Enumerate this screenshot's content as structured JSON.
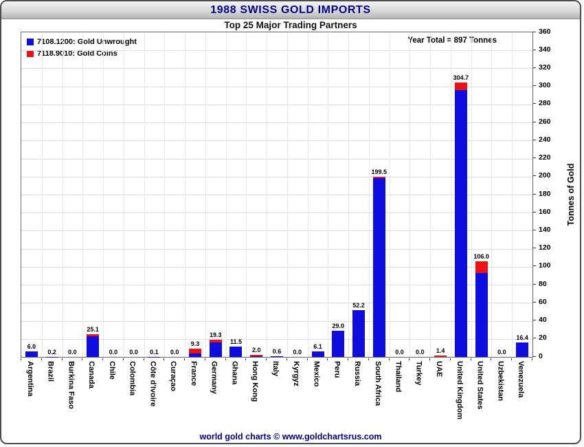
{
  "header": {
    "title": "1988 SWISS GOLD IMPORTS",
    "subtitle": "Top 25 Major Trading Partners"
  },
  "legend": [
    {
      "label": "7108.1200: Gold Unwrought",
      "color": "#0d0ddf"
    },
    {
      "label": "7118.9010: Gold Coins",
      "color": "#ee1111"
    }
  ],
  "annotation": "Year Total = 897 Tonnes",
  "footer": "world gold charts © www.goldchartsrus.com",
  "chart_data": {
    "type": "bar",
    "stacked": true,
    "title": "1988 SWISS GOLD IMPORTS",
    "subtitle": "Top 25 Major Trading Partners",
    "ylabel": "Tonnes of Gold",
    "xlabel": "",
    "ylim": [
      0,
      360
    ],
    "ytick_step": 20,
    "grid": true,
    "legend_position": "top-left",
    "categories": [
      "Argentina",
      "Brazil",
      "Burkina Faso",
      "Canada",
      "Chile",
      "Colombia",
      "Côte d'Ivoire",
      "Curaçao",
      "France",
      "Germany",
      "Ghana",
      "Hong Kong",
      "Italy",
      "Kyrgyz",
      "Mexico",
      "Peru",
      "Russia",
      "South Africa",
      "Thailand",
      "Turkey",
      "UAE",
      "United Kingdom",
      "United States",
      "Uzbekistan",
      "Venezuela"
    ],
    "series": [
      {
        "name": "7108.1200: Gold Unwrought",
        "color": "#0d0ddf",
        "values": [
          6.0,
          0.2,
          0.0,
          22.6,
          0.0,
          0.0,
          0.1,
          0.0,
          4.0,
          16.3,
          11.5,
          0.5,
          0.6,
          0.0,
          6.1,
          29.0,
          52.2,
          198.0,
          0.0,
          0.0,
          0.0,
          296.0,
          93.0,
          0.0,
          16.4
        ]
      },
      {
        "name": "7118.9010: Gold Coins",
        "color": "#ee1111",
        "values": [
          0.0,
          0.0,
          0.0,
          2.5,
          0.0,
          0.0,
          0.0,
          0.0,
          5.3,
          3.0,
          0.0,
          1.5,
          0.0,
          0.0,
          0.0,
          0.0,
          0.0,
          1.5,
          0.0,
          0.0,
          1.4,
          8.7,
          13.0,
          0.0,
          0.0
        ]
      }
    ],
    "labels": [
      "6.0",
      "0.2",
      "0.0",
      "25.1",
      "0.0",
      "0.0",
      "0.1",
      "0.0",
      "9.3",
      "19.3",
      "11.5",
      "2.0",
      "0.6",
      "0.0",
      "6.1",
      "29.0",
      "52.2",
      "199.5",
      "0.0",
      "0.0",
      "1.4",
      "304.7",
      "106.0",
      "0.0",
      "16.4"
    ]
  }
}
